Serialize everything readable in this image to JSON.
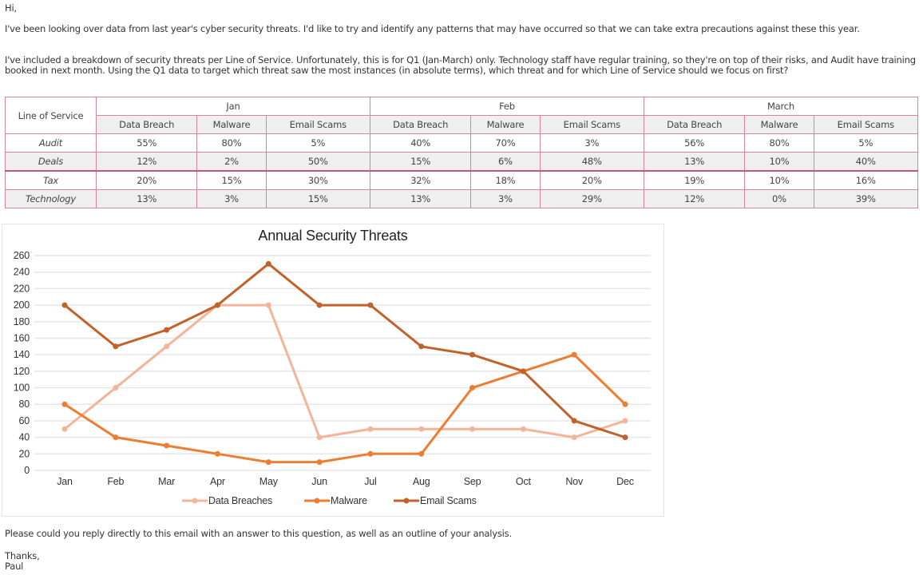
{
  "email": {
    "greeting": "Hi,",
    "para1": "I've been looking over data from last year's cyber security threats. I'd like to try and identify any patterns that may have occurred so that we can take extra precautions against these this year.",
    "para2": "I've included a breakdown of security threats per Line of Service. Unfortunately, this is for Q1 (Jan-March) only. Technology staff have regular training, so they're on top of their risks, and Audit have training booked in next month. Using the Q1 data to target which threat saw the most instances (in absolute terms), which threat and for which Line of Service should we focus on first?",
    "para3": "Please could you reply directly to this email with an answer to this question, as well as an outline of your analysis.",
    "signoff": "Thanks,",
    "name": "Paul"
  },
  "table": {
    "corner": "Line of Service",
    "months": [
      "Jan",
      "Feb",
      "March"
    ],
    "threats": [
      "Data Breach",
      "Malware",
      "Email Scams"
    ],
    "rows": [
      {
        "label": "Audit",
        "values": [
          "55%",
          "80%",
          "5%",
          "40%",
          "70%",
          "3%",
          "56%",
          "80%",
          "5%"
        ]
      },
      {
        "label": "Deals",
        "values": [
          "12%",
          "2%",
          "50%",
          "15%",
          "6%",
          "48%",
          "13%",
          "10%",
          "40%"
        ]
      },
      {
        "label": "Tax",
        "values": [
          "20%",
          "15%",
          "30%",
          "32%",
          "18%",
          "20%",
          "19%",
          "10%",
          "16%"
        ]
      },
      {
        "label": "Technology",
        "values": [
          "13%",
          "3%",
          "15%",
          "13%",
          "3%",
          "29%",
          "12%",
          "0%",
          "39%"
        ]
      }
    ],
    "border_color": "#d3859e"
  },
  "chart_data": {
    "type": "line",
    "title": "Annual Security Threats",
    "categories": [
      "Jan",
      "Feb",
      "Mar",
      "Apr",
      "May",
      "Jun",
      "Jul",
      "Aug",
      "Sep",
      "Oct",
      "Nov",
      "Dec"
    ],
    "ylim": [
      0,
      260
    ],
    "yticks": [
      0,
      20,
      40,
      60,
      80,
      100,
      120,
      140,
      160,
      180,
      200,
      220,
      240,
      260
    ],
    "grid": true,
    "legend": "bottom",
    "series": [
      {
        "name": "Data Breaches",
        "color": "#f4b49a",
        "values": [
          50,
          100,
          150,
          200,
          200,
          40,
          50,
          50,
          50,
          50,
          40,
          60
        ]
      },
      {
        "name": "Malware",
        "color": "#ed7d31",
        "values": [
          80,
          40,
          30,
          20,
          10,
          10,
          20,
          20,
          100,
          120,
          140,
          80
        ]
      },
      {
        "name": "Email Scams",
        "color": "#c0622a",
        "values": [
          200,
          150,
          170,
          200,
          250,
          200,
          200,
          150,
          140,
          120,
          60,
          40
        ]
      }
    ]
  }
}
